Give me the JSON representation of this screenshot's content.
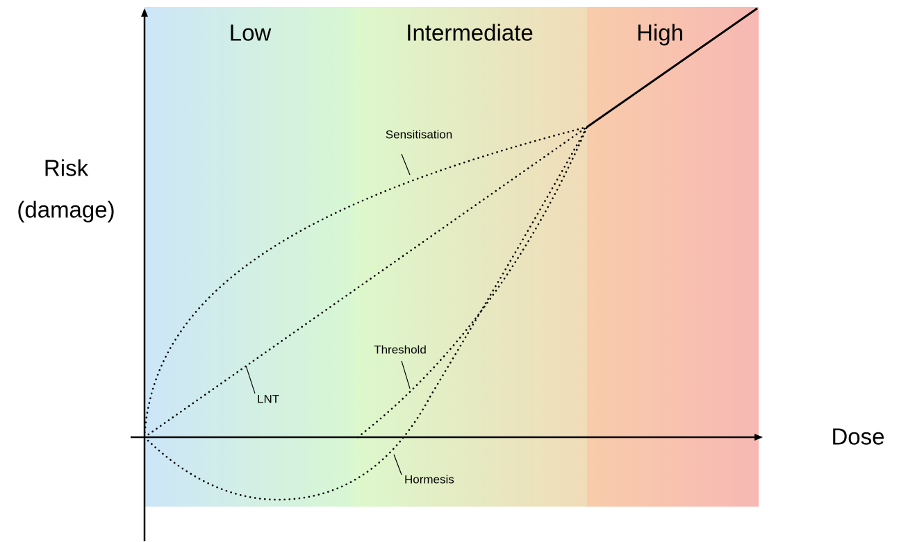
{
  "regions": {
    "low": "Low",
    "intermediate": "Intermediate",
    "high": "High"
  },
  "axes": {
    "y_label": {
      "line1": "Risk",
      "line2": "(damage)"
    },
    "x_label": "Dose"
  },
  "curves": {
    "sensitisation": "Sensitisation",
    "lnt": "LNT",
    "threshold": "Threshold",
    "hormesis": "Hormesis"
  }
}
